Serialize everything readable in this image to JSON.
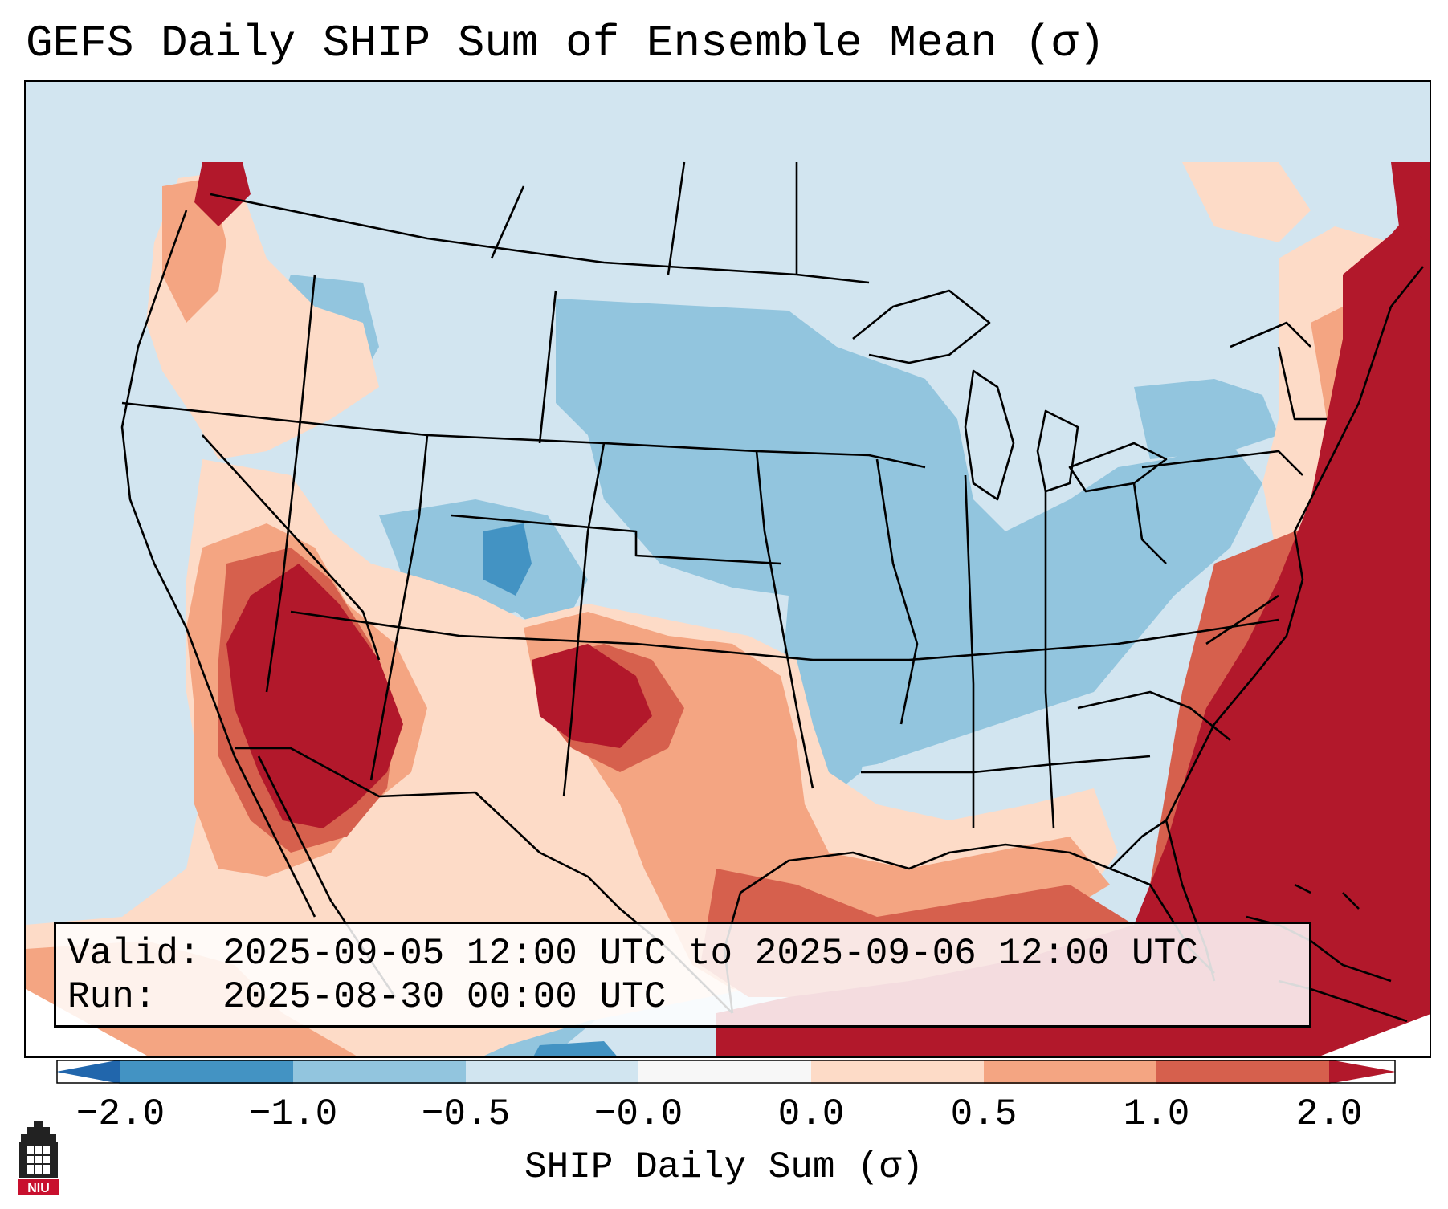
{
  "title": "GEFS Daily SHIP Sum of Ensemble Mean (σ)",
  "info": {
    "valid_line": "Valid: 2025-09-05 12:00 UTC to 2025-09-06 12:00 UTC",
    "run_line": "Run:   2025-08-30 00:00 UTC"
  },
  "colorbar": {
    "label": "SHIP Daily Sum (σ)",
    "ticks": [
      "−2.0",
      "−1.0",
      "−0.5",
      "−0.0",
      "0.0",
      "0.5",
      "1.0",
      "2.0"
    ],
    "colors": [
      "#4393c3",
      "#92c5de",
      "#d1e5f0",
      "#f7f7f7",
      "#fddbc7",
      "#f4a582",
      "#d6604d",
      "#b2182b"
    ],
    "extend_low_color": "#2166ac",
    "extend_high_color": "#b2182b"
  },
  "map": {
    "projection": "Lambert Conformal (CONUS)",
    "regions": [
      {
        "name": "southeast-atlantic-anomaly",
        "level": "2.0"
      },
      {
        "name": "desert-southwest-anomaly",
        "level": "2.0"
      },
      {
        "name": "southern-plains-anomaly",
        "level": "1.0"
      },
      {
        "name": "gulf-coast-anomaly",
        "level": "0.5"
      },
      {
        "name": "upper-midwest-anomaly",
        "level": "-1.0"
      },
      {
        "name": "northern-mexico-anomaly",
        "level": "-2.0"
      }
    ]
  },
  "logo": {
    "text": "NIU",
    "color": "#c8102e"
  }
}
